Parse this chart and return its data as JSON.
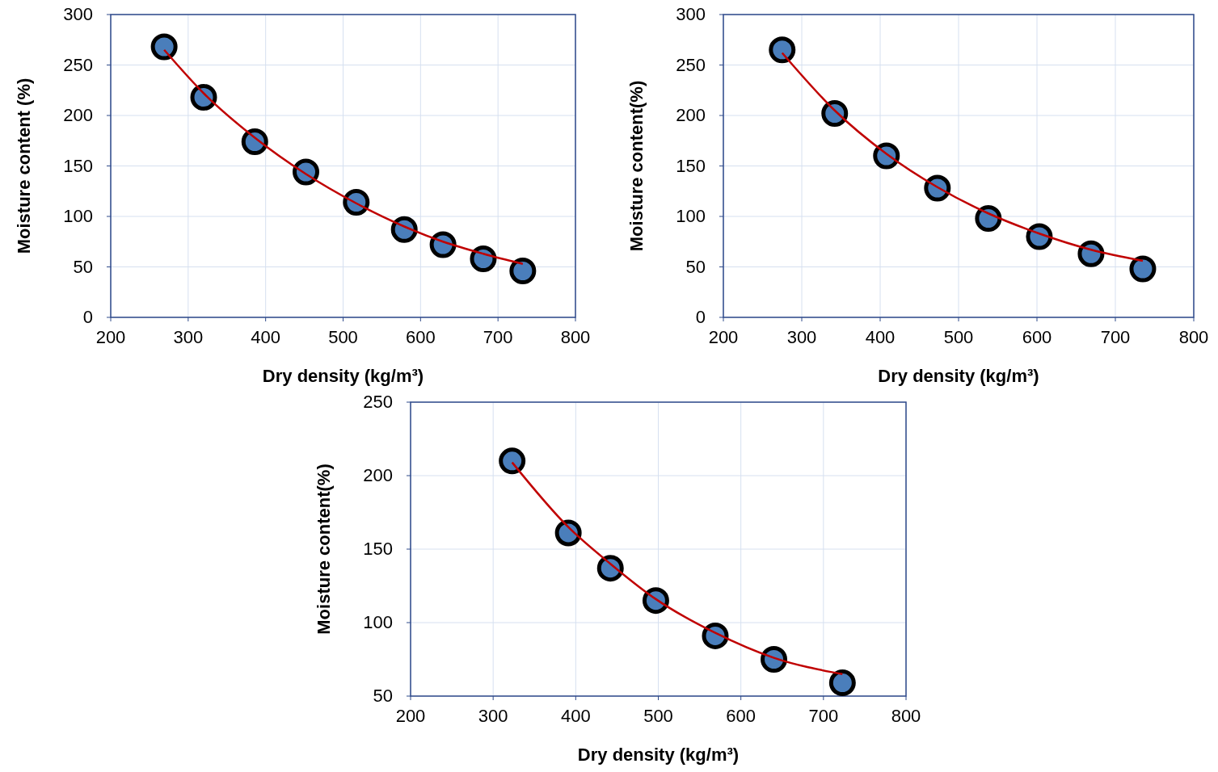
{
  "chart_data": [
    {
      "type": "scatter",
      "xlabel": "Dry density (kg/m³)",
      "ylabel": "Moisture content (%)",
      "xlim": [
        200,
        800
      ],
      "xticks": [
        200,
        300,
        400,
        500,
        600,
        700,
        800
      ],
      "ylim": [
        0,
        300
      ],
      "yticks": [
        0,
        50,
        100,
        150,
        200,
        250,
        300
      ],
      "grid": true,
      "series": [
        {
          "marker": "circle",
          "color": "#4a7ebb",
          "x": [
            269,
            320,
            386,
            452,
            517,
            579,
            629,
            681,
            732
          ],
          "values": [
            268,
            218,
            174,
            144,
            114,
            87,
            72,
            58,
            46
          ]
        },
        {
          "type": "line",
          "marker": "none",
          "color": "#c00000",
          "x": [
            269,
            320,
            386,
            452,
            517,
            579,
            629,
            681,
            732
          ],
          "values": [
            265,
            222,
            178,
            142,
            113,
            90,
            75,
            63,
            53
          ]
        }
      ]
    },
    {
      "type": "scatter",
      "xlabel": "Dry density (kg/m³)",
      "ylabel": "Moisture content(%)",
      "xlim": [
        200,
        800
      ],
      "xticks": [
        200,
        300,
        400,
        500,
        600,
        700,
        800
      ],
      "ylim": [
        0,
        300
      ],
      "yticks": [
        0,
        50,
        100,
        150,
        200,
        250,
        300
      ],
      "grid": true,
      "series": [
        {
          "marker": "circle",
          "color": "#4a7ebb",
          "x": [
            275,
            342,
            408,
            473,
            538,
            603,
            669,
            735
          ],
          "values": [
            265,
            202,
            160,
            128,
            98,
            80,
            63,
            48
          ]
        },
        {
          "type": "line",
          "marker": "none",
          "color": "#c00000",
          "x": [
            275,
            342,
            408,
            473,
            538,
            603,
            669,
            735
          ],
          "values": [
            262,
            205,
            162,
            129,
            103,
            83,
            67,
            56
          ]
        }
      ]
    },
    {
      "type": "scatter",
      "xlabel": "Dry density (kg/m³)",
      "ylabel": "Moisture content(%)",
      "xlim": [
        200,
        800
      ],
      "xticks": [
        200,
        300,
        400,
        500,
        600,
        700,
        800
      ],
      "ylim": [
        50,
        250
      ],
      "yticks": [
        50,
        100,
        150,
        200,
        250
      ],
      "grid": true,
      "series": [
        {
          "marker": "circle",
          "color": "#4a7ebb",
          "x": [
            323,
            391,
            442,
            497,
            569,
            640,
            723
          ],
          "values": [
            210,
            161,
            137,
            115,
            91,
            75,
            59
          ]
        },
        {
          "type": "line",
          "marker": "none",
          "color": "#c00000",
          "x": [
            323,
            391,
            442,
            497,
            569,
            640,
            723
          ],
          "values": [
            209,
            165,
            140,
            116,
            93,
            76,
            65
          ]
        }
      ]
    }
  ]
}
